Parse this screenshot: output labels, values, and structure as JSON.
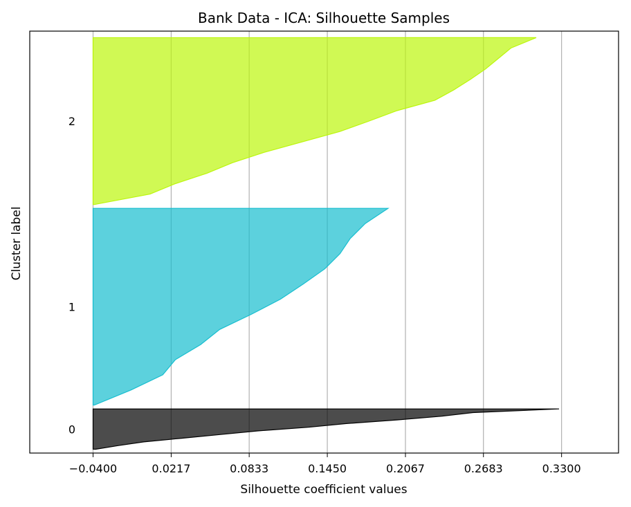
{
  "chart_data": {
    "type": "area",
    "title": "Bank Data - ICA: Silhouette Samples",
    "xlabel": "Silhouette coefficient values",
    "ylabel": "Cluster label",
    "xlim": [
      -0.09,
      0.375
    ],
    "ylim": [
      0,
      1100
    ],
    "xticks": [
      "−0.0400",
      "0.0217",
      "0.0833",
      "0.1450",
      "0.2067",
      "0.2683",
      "0.3300"
    ],
    "xtick_values": [
      -0.04,
      0.0217,
      0.0833,
      0.145,
      0.2067,
      0.2683,
      0.33
    ],
    "grid": "vertical",
    "series": [
      {
        "label": "0",
        "color": "#000000",
        "y_start": 10,
        "y_end": 115,
        "values_desc": [
          0.328,
          0.26,
          0.235,
          0.2,
          0.16,
          0.13,
          0.09,
          0.06,
          0.03,
          0.0,
          -0.02,
          -0.038
        ]
      },
      {
        "label": "1",
        "color": "#17becf",
        "y_start": 125,
        "y_end": 638,
        "values_desc": [
          0.193,
          0.175,
          0.163,
          0.155,
          0.143,
          0.126,
          0.108,
          0.085,
          0.06,
          0.045,
          0.025,
          0.015,
          -0.01,
          -0.039
        ]
      },
      {
        "label": "2",
        "color": "#bcf60c",
        "y_start": 648,
        "y_end": 1083,
        "values_desc": [
          0.31,
          0.29,
          0.28,
          0.27,
          0.258,
          0.245,
          0.23,
          0.2,
          0.178,
          0.155,
          0.125,
          0.095,
          0.07,
          0.05,
          0.025,
          0.005,
          -0.039
        ]
      }
    ]
  }
}
